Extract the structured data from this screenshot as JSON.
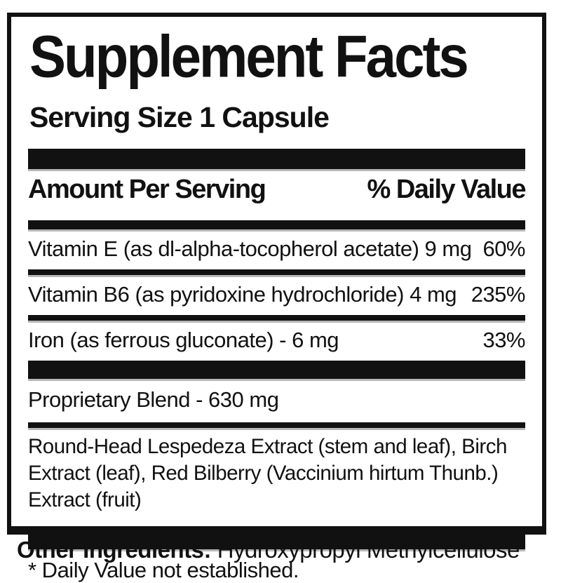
{
  "label": {
    "title": "Supplement Facts",
    "serving_size": "Serving Size 1 Capsule",
    "header": {
      "amount_col": "Amount Per Serving",
      "daily_value_col": "% Daily Value"
    },
    "rows": [
      {
        "name": "Vitamin E (as dl-alpha-tocopherol acetate) 9 mg",
        "daily_value": "60%"
      },
      {
        "name": "Vitamin B6 (as pyridoxine hydrochloride) 4 mg",
        "daily_value": "235%"
      },
      {
        "name": "Iron (as ferrous gluconate) - 6 mg",
        "daily_value": "33%"
      }
    ],
    "blend": {
      "name": "Proprietary Blend - 630 mg",
      "ingredients": "Round-Head Lespedeza Extract (stem and leaf), Birch Extract (leaf), Red Bilberry (Vaccinium hirtum Thunb.) Extract (fruit)"
    },
    "footnote": "* Daily Value not established.",
    "other_ingredients": {
      "label": "Other Ingredients:",
      "value": " Hydroxypropyl Methylcellulose"
    },
    "colors": {
      "ink": "#111111",
      "background": "#ffffff"
    }
  }
}
